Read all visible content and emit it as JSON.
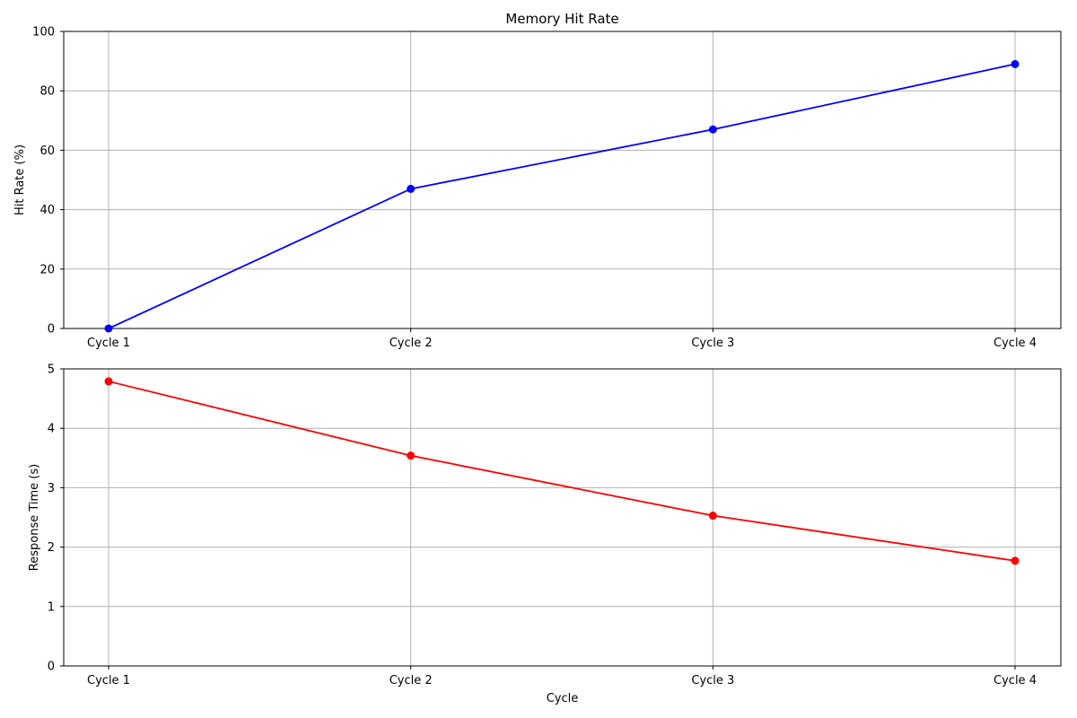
{
  "chart_data": [
    {
      "type": "line",
      "title": "Memory Hit Rate",
      "xlabel": "",
      "ylabel": "Hit Rate (%)",
      "categories": [
        "Cycle 1",
        "Cycle 2",
        "Cycle 3",
        "Cycle 4"
      ],
      "series": [
        {
          "values": [
            0,
            47,
            67,
            89
          ],
          "color": "#0000ff",
          "marker": "circle"
        }
      ],
      "ylim": [
        0,
        100
      ],
      "yticks": [
        "0",
        "20",
        "40",
        "60",
        "80",
        "100"
      ],
      "grid": true,
      "legend": "none"
    },
    {
      "type": "line",
      "title": "",
      "xlabel": "Cycle",
      "ylabel": "Response Time (s)",
      "categories": [
        "Cycle 1",
        "Cycle 2",
        "Cycle 3",
        "Cycle 4"
      ],
      "series": [
        {
          "values": [
            4.79,
            3.54,
            2.53,
            1.77
          ],
          "color": "#ff0000",
          "marker": "circle"
        }
      ],
      "ylim": [
        0,
        5
      ],
      "yticks": [
        "0",
        "1",
        "2",
        "3",
        "4",
        "5"
      ],
      "grid": true,
      "legend": "none"
    }
  ]
}
